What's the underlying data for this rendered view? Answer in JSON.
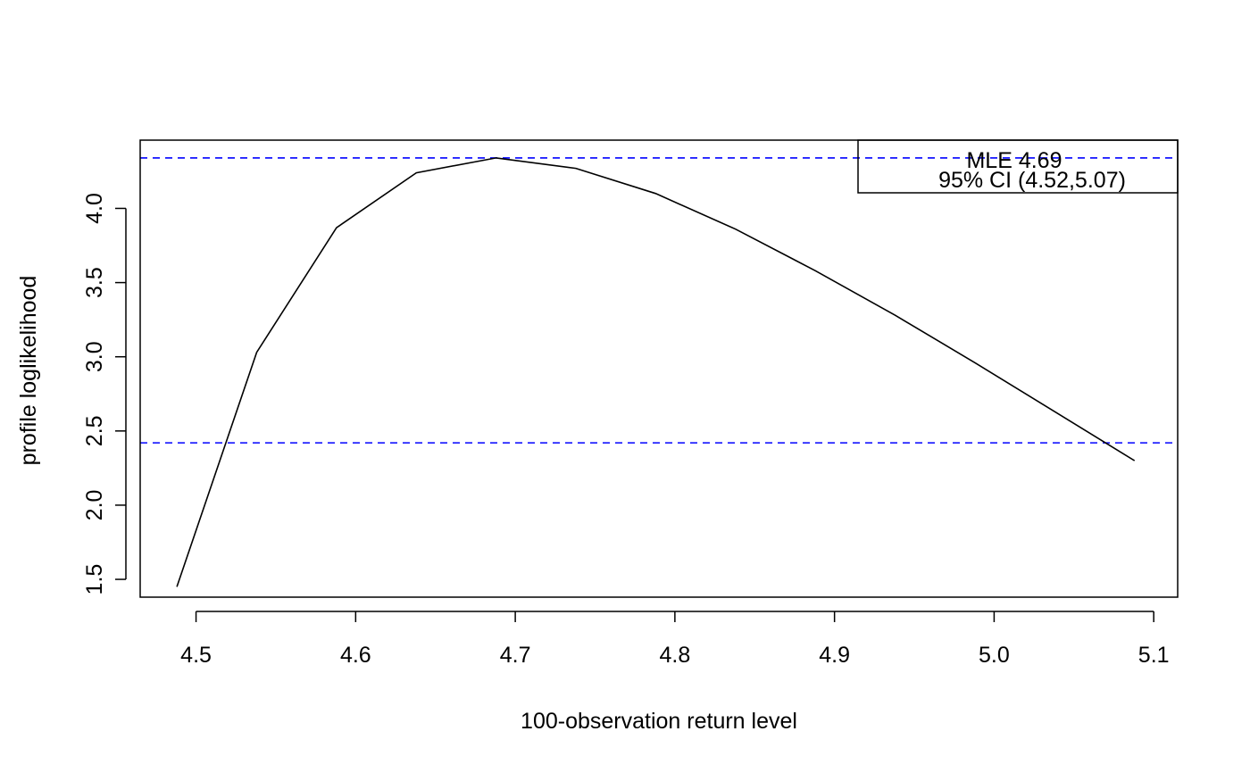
{
  "chart_data": {
    "type": "line",
    "title": "",
    "xlabel": "100-observation return level",
    "ylabel": "profile loglikelihood",
    "xlim": [
      4.465,
      5.115
    ],
    "ylim": [
      1.38,
      4.46
    ],
    "x_ticks": [
      4.5,
      4.6,
      4.7,
      4.8,
      4.9,
      5.0,
      5.1
    ],
    "x_tick_labels": [
      "4.5",
      "4.6",
      "4.7",
      "4.8",
      "4.9",
      "5.0",
      "5.1"
    ],
    "y_ticks": [
      1.5,
      2.0,
      2.5,
      3.0,
      3.5,
      4.0
    ],
    "y_tick_labels": [
      "1.5",
      "2.0",
      "2.5",
      "3.0",
      "3.5",
      "4.0"
    ],
    "grid": false,
    "series": [
      {
        "x": [
          4.488,
          4.538,
          4.588,
          4.638,
          4.688,
          4.738,
          4.788,
          4.838,
          4.888,
          4.938,
          4.988,
          5.038,
          5.088
        ],
        "y": [
          1.45,
          3.03,
          3.87,
          4.24,
          4.34,
          4.27,
          4.1,
          3.86,
          3.58,
          3.28,
          2.96,
          2.63,
          2.3
        ],
        "color": "#000000"
      }
    ],
    "reference_lines": [
      {
        "orientation": "horizontal",
        "y": 4.34,
        "color": "#0000ff",
        "style": "dashed"
      },
      {
        "orientation": "horizontal",
        "y": 2.42,
        "color": "#0000ff",
        "style": "dashed"
      }
    ],
    "legend": {
      "position": "top-right",
      "lines": [
        "MLE 4.69",
        "95% CI (4.52,5.07)"
      ]
    }
  }
}
